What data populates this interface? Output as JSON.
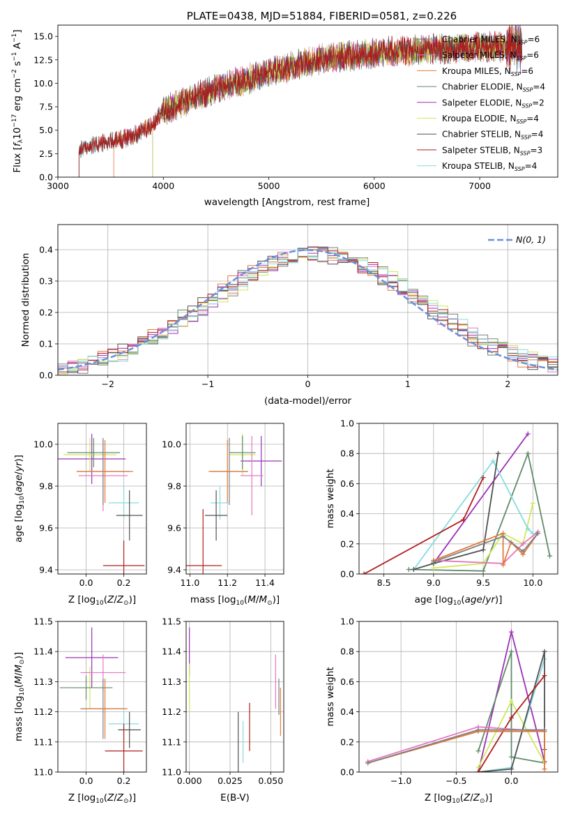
{
  "colors": {
    "chabrier_miles": "#7f7f7f",
    "salpeter_miles": "#e377c2",
    "kroupa_miles": "#e07b39",
    "chabrier_elodie": "#5f8a6a",
    "salpeter_elodie": "#9b30b5",
    "kroupa_elodie": "#cfe85a",
    "chabrier_stelib": "#505050",
    "salpeter_stelib": "#b01c1c",
    "kroupa_stelib": "#86dbe0",
    "normal_curve": "#6a8fd8",
    "grid": "#b0b0b0"
  },
  "chart_data": [
    {
      "id": "spectrum",
      "type": "line",
      "title": "PLATE=0438, MJD=51884, FIBERID=0581, z=0.226",
      "xlabel": "wavelength [Angstrom, rest frame]",
      "ylabel": "Flux [f_λ10^-17 erg cm^-2 s^-1 A^-1]",
      "xlim": [
        3000,
        7740
      ],
      "ylim": [
        0,
        16.2
      ],
      "xticks": [
        3000,
        4000,
        5000,
        6000,
        7000
      ],
      "yticks": [
        "0.0",
        "2.5",
        "5.0",
        "7.5",
        "10.0",
        "12.5",
        "15.0"
      ],
      "grid": false,
      "legend_position": "top-right",
      "data_start": 3200,
      "data_end": 7400,
      "series": [
        {
          "name": "Chabrier MILES, N_SSP=6",
          "color": "#7f7f7f",
          "start": 3200
        },
        {
          "name": "Salpeter MILES, N_SSP=6",
          "color": "#e377c2",
          "start": 3530
        },
        {
          "name": "Kroupa MILES, N_SSP=6",
          "color": "#e07b39",
          "start": 3530
        },
        {
          "name": "Chabrier ELODIE, N_SSP=4",
          "color": "#5f8a6a",
          "start": 3900
        },
        {
          "name": "Salpeter ELODIE, N_SSP=2",
          "color": "#9b30b5",
          "start": 3900
        },
        {
          "name": "Kroupa ELODIE, N_SSP=4",
          "color": "#cfe85a",
          "start": 3900
        },
        {
          "name": "Chabrier STELIB, N_SSP=4",
          "color": "#505050",
          "start": 3200
        },
        {
          "name": "Salpeter STELIB, N_SSP=3",
          "color": "#b01c1c",
          "start": 3200
        },
        {
          "name": "Kroupa STELIB, N_SSP=4",
          "color": "#86dbe0",
          "start": 3200
        }
      ],
      "continuum": [
        [
          3200,
          3.0
        ],
        [
          3700,
          4.3
        ],
        [
          3900,
          5.6
        ],
        [
          4000,
          7.1
        ],
        [
          4300,
          8.6
        ],
        [
          4600,
          9.8
        ],
        [
          5000,
          11.1
        ],
        [
          5500,
          12.6
        ],
        [
          6000,
          13.2
        ],
        [
          6500,
          13.6
        ],
        [
          7000,
          13.8
        ],
        [
          7400,
          14.0
        ]
      ]
    },
    {
      "id": "residuals",
      "type": "histogram",
      "xlabel": "(data-model)/error",
      "ylabel": "Normed distribution",
      "xlim": [
        -2.5,
        2.5
      ],
      "ylim": [
        0,
        0.48
      ],
      "xticks": [
        -2,
        -1,
        0,
        1,
        2
      ],
      "yticks": [
        "0.0",
        "0.1",
        "0.2",
        "0.3",
        "0.4"
      ],
      "grid": true,
      "legend_position": "top-right",
      "legend": "N(0, 1)",
      "bin_width": 0.1
    },
    {
      "id": "age_vs_z",
      "type": "errorbar",
      "xlabel": "Z [log10(Z/Z⊙)]",
      "ylabel": "age [log10(age/yr)]",
      "xlim": [
        -0.15,
        0.32
      ],
      "ylim": [
        9.38,
        10.1
      ],
      "xticks": [
        "0.0",
        "0.2"
      ],
      "yticks": [
        "9.4",
        "9.6",
        "9.8",
        "10.0"
      ],
      "grid": true,
      "points": [
        {
          "x": 0.03,
          "y": 9.93,
          "xerr": 0.18,
          "yerr": 0.12,
          "color": "#9b30b5"
        },
        {
          "x": 0.02,
          "y": 9.95,
          "xerr": 0.14,
          "yerr": 0.08,
          "color": "#cfe85a"
        },
        {
          "x": 0.04,
          "y": 9.96,
          "xerr": 0.14,
          "yerr": 0.07,
          "color": "#5f8a6a"
        },
        {
          "x": 0.09,
          "y": 9.85,
          "xerr": 0.13,
          "yerr": 0.17,
          "color": "#e377c2"
        },
        {
          "x": 0.09,
          "y": 9.87,
          "xerr": 0.14,
          "yerr": 0.16,
          "color": "#7f7f7f"
        },
        {
          "x": 0.1,
          "y": 9.87,
          "xerr": 0.15,
          "yerr": 0.15,
          "color": "#e07b39"
        },
        {
          "x": 0.2,
          "y": 9.72,
          "xerr": 0.08,
          "yerr": 0.08,
          "color": "#86dbe0"
        },
        {
          "x": 0.23,
          "y": 9.66,
          "xerr": 0.07,
          "yerr": 0.12,
          "color": "#505050"
        },
        {
          "x": 0.2,
          "y": 9.42,
          "xerr": 0.11,
          "yerr": 0.12,
          "color": "#b01c1c"
        }
      ]
    },
    {
      "id": "age_vs_mass",
      "type": "errorbar",
      "xlabel": "mass [log10(M/M⊙)]",
      "ylabel": "",
      "xlim": [
        10.98,
        11.5
      ],
      "ylim": [
        9.38,
        10.1
      ],
      "xticks": [
        "11.0",
        "11.2",
        "11.4"
      ],
      "yticks": [
        "9.4",
        "9.6",
        "9.8",
        "10.0"
      ],
      "grid": true,
      "points": [
        {
          "x": 11.38,
          "y": 9.92,
          "xerr": 0.11,
          "yerr": 0.12,
          "color": "#9b30b5"
        },
        {
          "x": 11.28,
          "y": 9.95,
          "xerr": 0.07,
          "yerr": 0.1,
          "color": "#cfe85a"
        },
        {
          "x": 11.28,
          "y": 9.96,
          "xerr": 0.07,
          "yerr": 0.08,
          "color": "#5f8a6a"
        },
        {
          "x": 11.33,
          "y": 9.85,
          "xerr": 0.06,
          "yerr": 0.19,
          "color": "#e377c2"
        },
        {
          "x": 11.21,
          "y": 9.87,
          "xerr": 0.1,
          "yerr": 0.16,
          "color": "#7f7f7f"
        },
        {
          "x": 11.2,
          "y": 9.87,
          "xerr": 0.1,
          "yerr": 0.15,
          "color": "#e07b39"
        },
        {
          "x": 11.16,
          "y": 9.72,
          "xerr": 0.05,
          "yerr": 0.08,
          "color": "#86dbe0"
        },
        {
          "x": 11.14,
          "y": 9.66,
          "xerr": 0.06,
          "yerr": 0.12,
          "color": "#505050"
        },
        {
          "x": 11.07,
          "y": 9.42,
          "xerr": 0.1,
          "yerr": 0.27,
          "color": "#b01c1c"
        }
      ]
    },
    {
      "id": "weight_vs_age",
      "type": "line",
      "xlabel": "age [log10(age/yr)]",
      "ylabel": "mass weight",
      "xlim": [
        8.25,
        10.25
      ],
      "ylim": [
        0,
        1.0
      ],
      "xticks": [
        "8.5",
        "9.0",
        "9.5",
        "10.0"
      ],
      "yticks": [
        "0.0",
        "0.2",
        "0.4",
        "0.6",
        "0.8",
        "1.0"
      ],
      "grid": true,
      "series": [
        {
          "color": "#9b30b5",
          "points": [
            [
              9.0,
              0.07
            ],
            [
              9.95,
              0.93
            ]
          ]
        },
        {
          "color": "#5f8a6a",
          "points": [
            [
              8.75,
              0.03
            ],
            [
              9.5,
              0.02
            ],
            [
              9.95,
              0.8
            ],
            [
              10.17,
              0.12
            ]
          ]
        },
        {
          "color": "#cfe85a",
          "points": [
            [
              9.0,
              0.04
            ],
            [
              9.5,
              0.07
            ],
            [
              9.7,
              0.27
            ],
            [
              9.9,
              0.2
            ],
            [
              10.0,
              0.47
            ]
          ]
        },
        {
          "color": "#86dbe0",
          "points": [
            [
              8.8,
              0.03
            ],
            [
              9.6,
              0.75
            ],
            [
              9.95,
              0.3
            ],
            [
              10.0,
              0.27
            ]
          ]
        },
        {
          "color": "#505050",
          "points": [
            [
              8.8,
              0.03
            ],
            [
              9.0,
              0.07
            ],
            [
              9.5,
              0.16
            ],
            [
              9.65,
              0.8
            ]
          ]
        },
        {
          "color": "#b01c1c",
          "points": [
            [
              8.3,
              0.0
            ],
            [
              9.3,
              0.36
            ],
            [
              9.5,
              0.64
            ]
          ]
        },
        {
          "color": "#e377c2",
          "points": [
            [
              9.0,
              0.09
            ],
            [
              9.7,
              0.07
            ],
            [
              9.9,
              0.2
            ],
            [
              10.05,
              0.28
            ]
          ]
        },
        {
          "color": "#e07b39",
          "points": [
            [
              9.0,
              0.09
            ],
            [
              9.7,
              0.27
            ],
            [
              9.7,
              0.06
            ],
            [
              9.78,
              0.21
            ],
            [
              9.9,
              0.13
            ],
            [
              10.05,
              0.27
            ]
          ]
        },
        {
          "color": "#7f7f7f",
          "points": [
            [
              9.0,
              0.08
            ],
            [
              9.7,
              0.25
            ],
            [
              9.9,
              0.15
            ],
            [
              10.05,
              0.27
            ]
          ]
        }
      ]
    },
    {
      "id": "mass_vs_z",
      "type": "errorbar",
      "xlabel": "Z [log10(Z/Z⊙)]",
      "ylabel": "mass [log10(M/M⊙)]",
      "xlim": [
        -0.15,
        0.32
      ],
      "ylim": [
        11.0,
        11.5
      ],
      "xticks": [
        "0.0",
        "0.2"
      ],
      "yticks": [
        "11.0",
        "11.1",
        "11.2",
        "11.3",
        "11.4",
        "11.5"
      ],
      "grid": true,
      "points": [
        {
          "x": 0.03,
          "y": 11.38,
          "xerr": 0.14,
          "yerr": 0.1,
          "color": "#9b30b5"
        },
        {
          "x": 0.02,
          "y": 11.28,
          "xerr": 0.1,
          "yerr": 0.07,
          "color": "#cfe85a"
        },
        {
          "x": 0.0,
          "y": 11.28,
          "xerr": 0.14,
          "yerr": 0.04,
          "color": "#5f8a6a"
        },
        {
          "x": 0.09,
          "y": 11.33,
          "xerr": 0.12,
          "yerr": 0.06,
          "color": "#e377c2"
        },
        {
          "x": 0.09,
          "y": 11.21,
          "xerr": 0.12,
          "yerr": 0.1,
          "color": "#7f7f7f"
        },
        {
          "x": 0.1,
          "y": 11.21,
          "xerr": 0.12,
          "yerr": 0.1,
          "color": "#e07b39"
        },
        {
          "x": 0.2,
          "y": 11.16,
          "xerr": 0.08,
          "yerr": 0.05,
          "color": "#86dbe0"
        },
        {
          "x": 0.23,
          "y": 11.14,
          "xerr": 0.06,
          "yerr": 0.06,
          "color": "#505050"
        },
        {
          "x": 0.2,
          "y": 11.07,
          "xerr": 0.1,
          "yerr": 0.09,
          "color": "#b01c1c"
        }
      ]
    },
    {
      "id": "mass_vs_ebv",
      "type": "errorbar",
      "xlabel": "E(B-V)",
      "ylabel": "",
      "xlim": [
        -0.002,
        0.058
      ],
      "ylim": [
        11.0,
        11.5
      ],
      "xticks": [
        "0.000",
        "0.025",
        "0.050"
      ],
      "yticks": [
        "11.0",
        "11.1",
        "11.2",
        "11.3",
        "11.4",
        "11.5"
      ],
      "grid": true,
      "points": [
        {
          "x": 0.0,
          "y": 11.4,
          "xerr": 0,
          "yerr": 0.08,
          "color": "#9b30b5"
        },
        {
          "x": 0.0,
          "y": 11.28,
          "xerr": 0,
          "yerr": 0.08,
          "color": "#cfe85a"
        },
        {
          "x": 0.03,
          "y": 11.1,
          "xerr": 0,
          "yerr": 0.1,
          "color": "#505050"
        },
        {
          "x": 0.033,
          "y": 11.1,
          "xerr": 0,
          "yerr": 0.07,
          "color": "#86dbe0"
        },
        {
          "x": 0.037,
          "y": 11.15,
          "xerr": 0,
          "yerr": 0.08,
          "color": "#b01c1c"
        },
        {
          "x": 0.053,
          "y": 11.3,
          "xerr": 0,
          "yerr": 0.09,
          "color": "#e377c2"
        },
        {
          "x": 0.055,
          "y": 11.25,
          "xerr": 0,
          "yerr": 0.06,
          "color": "#7f7f7f"
        },
        {
          "x": 0.056,
          "y": 11.2,
          "xerr": 0,
          "yerr": 0.08,
          "color": "#e07b39"
        }
      ]
    },
    {
      "id": "weight_vs_z",
      "type": "line",
      "xlabel": "Z [log10(Z/Z⊙)]",
      "ylabel": "mass weight",
      "xlim": [
        -1.38,
        0.42
      ],
      "ylim": [
        0,
        1.0
      ],
      "xticks": [
        "-1.0",
        "-0.5",
        "0.0"
      ],
      "yticks": [
        "0.0",
        "0.2",
        "0.4",
        "0.6",
        "0.8",
        "1.0"
      ],
      "grid": true,
      "series": [
        {
          "color": "#9b30b5",
          "points": [
            [
              -0.3,
              0.0
            ],
            [
              0.0,
              0.93
            ],
            [
              0.3,
              0.07
            ]
          ]
        },
        {
          "color": "#5f8a6a",
          "points": [
            [
              -0.3,
              0.14
            ],
            [
              0.0,
              0.8
            ],
            [
              0.0,
              0.1
            ],
            [
              0.3,
              0.06
            ]
          ]
        },
        {
          "color": "#cfe85a",
          "points": [
            [
              -0.3,
              0.03
            ],
            [
              0.0,
              0.47
            ],
            [
              0.3,
              0.06
            ]
          ]
        },
        {
          "color": "#86dbe0",
          "points": [
            [
              -0.3,
              0.0
            ],
            [
              0.0,
              0.03
            ],
            [
              0.3,
              0.75
            ]
          ]
        },
        {
          "color": "#505050",
          "points": [
            [
              -0.3,
              0.0
            ],
            [
              0.0,
              0.02
            ],
            [
              0.3,
              0.8
            ],
            [
              0.3,
              0.15
            ]
          ]
        },
        {
          "color": "#b01c1c",
          "points": [
            [
              -0.3,
              0.0
            ],
            [
              0.0,
              0.36
            ],
            [
              0.3,
              0.64
            ]
          ]
        },
        {
          "color": "#e377c2",
          "points": [
            [
              -1.3,
              0.07
            ],
            [
              -0.3,
              0.3
            ],
            [
              0.3,
              0.27
            ]
          ]
        },
        {
          "color": "#e07b39",
          "points": [
            [
              -1.3,
              0.06
            ],
            [
              -0.3,
              0.27
            ],
            [
              0.3,
              0.27
            ],
            [
              0.3,
              0.02
            ]
          ]
        },
        {
          "color": "#7f7f7f",
          "points": [
            [
              -1.3,
              0.06
            ],
            [
              -0.3,
              0.28
            ],
            [
              0.3,
              0.28
            ]
          ]
        }
      ]
    }
  ]
}
